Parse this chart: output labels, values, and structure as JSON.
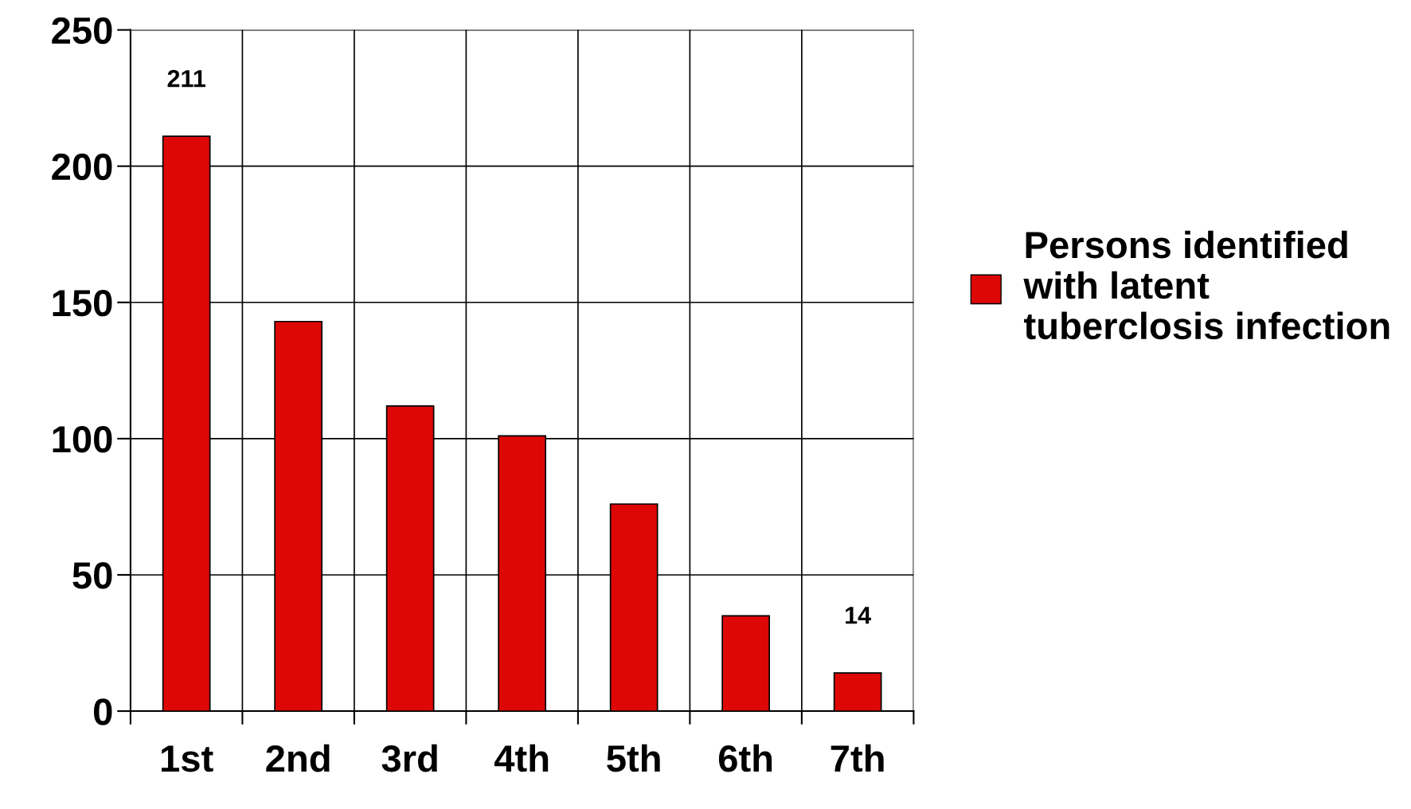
{
  "chart_data": {
    "type": "bar",
    "categories": [
      "1st",
      "2nd",
      "3rd",
      "4th",
      "5th",
      "6th",
      "7th"
    ],
    "series": [
      {
        "name": "Persons identified with latent tuberclosis infection",
        "color": "#dd0806",
        "values": [
          211,
          143,
          112,
          101,
          76,
          35,
          14
        ],
        "value_labels": [
          "211",
          null,
          null,
          null,
          null,
          null,
          "14"
        ]
      }
    ],
    "ylim": [
      0,
      250
    ],
    "yticks": [
      0,
      50,
      100,
      150,
      200,
      250
    ],
    "grid": true,
    "legend": "right"
  }
}
